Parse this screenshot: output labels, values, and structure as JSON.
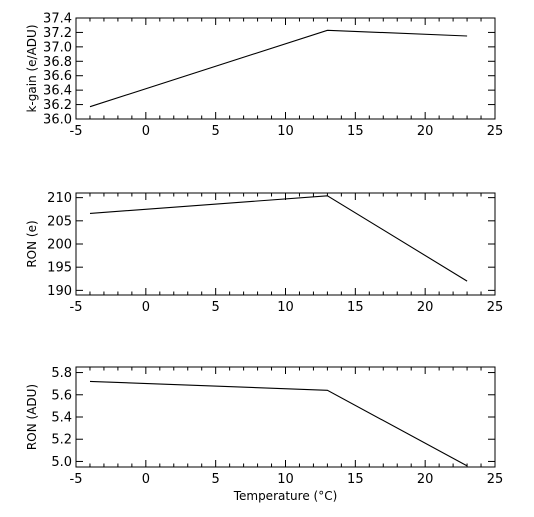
{
  "chart_data": [
    {
      "type": "line",
      "title": "",
      "xlabel": "",
      "ylabel": "k-gain (e/ADU)",
      "xlim": [
        -5,
        25
      ],
      "ylim": [
        36.0,
        37.4
      ],
      "xticks": [
        -5,
        0,
        5,
        10,
        15,
        20,
        25
      ],
      "xtick_labels": [
        "-5",
        "0",
        "5",
        "10",
        "15",
        "20",
        "25"
      ],
      "yticks": [
        36.0,
        36.2,
        36.4,
        36.6,
        36.8,
        37.0,
        37.2,
        37.4
      ],
      "ytick_labels": [
        "36.0",
        "36.2",
        "36.4",
        "36.6",
        "36.8",
        "37.0",
        "37.2",
        "37.4"
      ],
      "x": [
        -4,
        13,
        23
      ],
      "series": [
        {
          "values": [
            36.17,
            37.23,
            37.15
          ]
        }
      ]
    },
    {
      "type": "line",
      "title": "",
      "xlabel": "",
      "ylabel": "RON (e)",
      "xlim": [
        -5,
        25
      ],
      "ylim": [
        189,
        211
      ],
      "xticks": [
        -5,
        0,
        5,
        10,
        15,
        20,
        25
      ],
      "xtick_labels": [
        "-5",
        "0",
        "5",
        "10",
        "15",
        "20",
        "25"
      ],
      "yticks": [
        190,
        195,
        200,
        205,
        210
      ],
      "ytick_labels": [
        "190",
        "195",
        "200",
        "205",
        "210"
      ],
      "x": [
        -4,
        13,
        23
      ],
      "series": [
        {
          "values": [
            206.6,
            210.4,
            192.0
          ]
        }
      ]
    },
    {
      "type": "line",
      "title": "",
      "xlabel": "Temperature (°C)",
      "ylabel": "RON (ADU)",
      "xlim": [
        -5,
        25
      ],
      "ylim": [
        4.95,
        5.85
      ],
      "xticks": [
        -5,
        0,
        5,
        10,
        15,
        20,
        25
      ],
      "xtick_labels": [
        "-5",
        "0",
        "5",
        "10",
        "15",
        "20",
        "25"
      ],
      "yticks": [
        5.0,
        5.2,
        5.4,
        5.6,
        5.8
      ],
      "ytick_labels": [
        "5.0",
        "5.2",
        "5.4",
        "5.6",
        "5.8"
      ],
      "x": [
        -4,
        13,
        23
      ],
      "series": [
        {
          "values": [
            5.72,
            5.64,
            4.96
          ]
        }
      ]
    }
  ]
}
